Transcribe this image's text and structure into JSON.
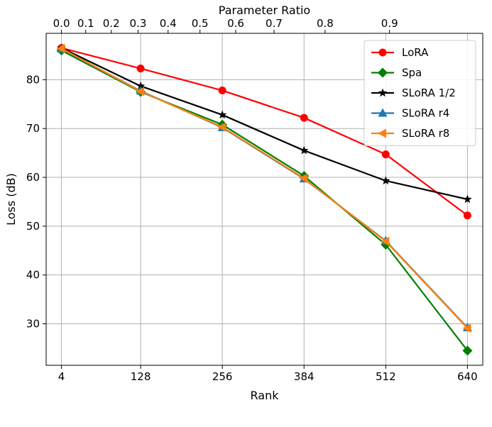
{
  "chart_data": {
    "type": "line",
    "xlabel": "Rank",
    "ylabel": "Loss (dB)",
    "top_xlabel": "Parameter Ratio",
    "x": [
      4,
      128,
      256,
      384,
      512,
      640
    ],
    "x_tick_labels": [
      "4",
      "128",
      "256",
      "384",
      "512",
      "640"
    ],
    "xlim": [
      -20,
      664
    ],
    "ylim": [
      21.5,
      89.5
    ],
    "y_ticks": [
      30,
      40,
      50,
      60,
      70,
      80
    ],
    "y_tick_labels": [
      "30",
      "40",
      "50",
      "60",
      "70",
      "80"
    ],
    "top_ticks": [
      {
        "label": "0.0",
        "x": 4
      },
      {
        "label": "0.1",
        "x": 42
      },
      {
        "label": "0.2",
        "x": 82
      },
      {
        "label": "0.3",
        "x": 124
      },
      {
        "label": "0.4",
        "x": 171
      },
      {
        "label": "0.5",
        "x": 221
      },
      {
        "label": "0.6",
        "x": 277
      },
      {
        "label": "0.7",
        "x": 337
      },
      {
        "label": "0.8",
        "x": 417
      },
      {
        "label": "0.9",
        "x": 518
      }
    ],
    "grid": true,
    "legend_position": "top-right",
    "series": [
      {
        "name": "LoRA",
        "color": "#ff0000",
        "marker": "circle",
        "values": [
          86.5,
          82.3,
          77.8,
          72.2,
          64.7,
          52.2
        ]
      },
      {
        "name": "Spa",
        "color": "#008000",
        "marker": "diamond",
        "values": [
          86.0,
          77.5,
          70.8,
          60.3,
          46.2,
          24.5
        ]
      },
      {
        "name": "SLoRA 1/2",
        "color": "#000000",
        "marker": "star",
        "values": [
          86.5,
          78.7,
          72.8,
          65.5,
          59.3,
          55.5
        ]
      },
      {
        "name": "SLoRA r4",
        "color": "#1f77b4",
        "marker": "triangle-up",
        "values": [
          86.3,
          77.7,
          70.2,
          59.7,
          47.0,
          29.2
        ]
      },
      {
        "name": "SLoRA r8",
        "color": "#ff7f0e",
        "marker": "triangle-left",
        "values": [
          86.4,
          77.6,
          70.3,
          59.8,
          46.9,
          29.1
        ]
      }
    ]
  }
}
